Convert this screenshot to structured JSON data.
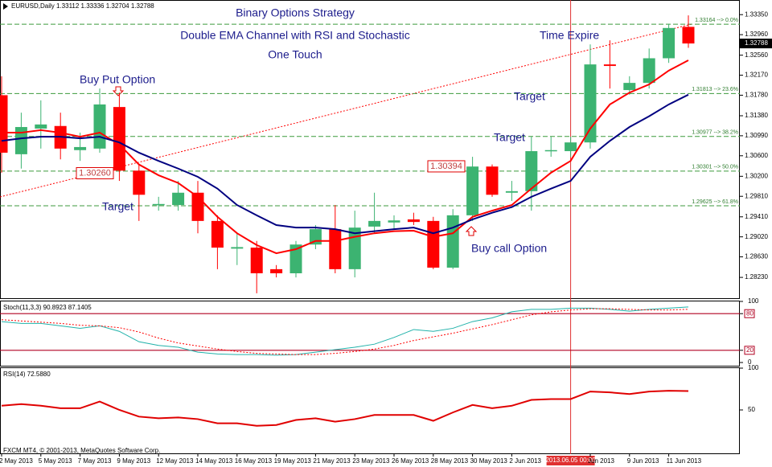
{
  "chart_data": [
    {
      "type": "candlestick",
      "header": "EURUSD,Daily 1.33112 1.33336 1.32704 1.32788",
      "title_lines": [
        "Binary Options Strategy",
        "Double EMA Channel with RSI and Stochastic",
        "One Touch"
      ],
      "annotations": [
        "Buy Put Option",
        "Target",
        "Target",
        "Target",
        "Buy call Option",
        "Time Expire"
      ],
      "categories": [
        "2 May 2013",
        null,
        "5 May 2013",
        null,
        "7 May 2013",
        null,
        "9 May 2013",
        null,
        "12 May 2013",
        null,
        "14 May 2013",
        null,
        "16 May 2013",
        null,
        "19 May 2013",
        null,
        "21 May 2013",
        null,
        "23 May 2013",
        null,
        "26 May 2013",
        null,
        "28 May 2013",
        null,
        "30 May 2013",
        null,
        "2 Jun 2013",
        null,
        null,
        null,
        "Jun 2013",
        null,
        "9 Jun 2013",
        null,
        "11 Jun 2013",
        null
      ],
      "crosshair_label": "2013.06.05 00:00",
      "open": [
        1.3178,
        1.3063,
        1.3113,
        1.3118,
        1.3071,
        1.3074,
        1.3155,
        1.3031,
        1.2964,
        1.2964,
        1.2988,
        1.2933,
        1.2879,
        1.2881,
        1.2839,
        1.2831,
        1.2887,
        1.2917,
        1.2839,
        1.2922,
        1.293,
        1.2936,
        1.2933,
        1.2842,
        1.2944,
        1.3039,
        1.2988,
        1.2991,
        1.3069,
        1.3069,
        1.3086,
        1.3238,
        1.3188,
        1.3202,
        1.325,
        1.33112
      ],
      "high": [
        1.3215,
        1.3144,
        1.3168,
        1.3144,
        1.3105,
        1.3191,
        1.3183,
        1.3043,
        1.298,
        1.3011,
        1.3011,
        1.2944,
        1.2909,
        1.2894,
        1.2847,
        1.2894,
        1.2925,
        1.2964,
        1.2953,
        1.2988,
        1.2944,
        1.2949,
        1.2941,
        1.2956,
        1.3058,
        1.3043,
        1.3011,
        1.3097,
        1.3097,
        1.3097,
        1.3277,
        1.3285,
        1.3215,
        1.3269,
        1.3317,
        1.33336
      ],
      "low": [
        1.3027,
        1.3035,
        1.3074,
        1.3053,
        1.305,
        1.3066,
        1.3011,
        1.2933,
        1.2953,
        1.2953,
        1.2909,
        1.2839,
        1.2847,
        1.2792,
        1.2823,
        1.2823,
        1.2878,
        1.2831,
        1.2823,
        1.2909,
        1.2917,
        1.2925,
        1.2839,
        1.2839,
        1.2933,
        1.298,
        1.2972,
        1.2953,
        1.3058,
        1.3058,
        1.3074,
        1.3191,
        1.3179,
        1.3191,
        1.3241,
        1.32704
      ],
      "close": [
        1.3066,
        1.3116,
        1.3121,
        1.3074,
        1.3077,
        1.316,
        1.3031,
        1.2984,
        1.2966,
        1.2988,
        1.2933,
        1.2881,
        1.2882,
        1.2831,
        1.2831,
        1.2887,
        1.2917,
        1.2839,
        1.292,
        1.2933,
        1.2934,
        1.2931,
        1.2842,
        1.2944,
        1.3039,
        1.2984,
        1.2991,
        1.3069,
        1.3071,
        1.3086,
        1.3238,
        1.3235,
        1.3202,
        1.325,
        1.3309,
        1.32788
      ],
      "up_color": "#3cb371",
      "down_color": "#ff0000",
      "lines": [
        {
          "color": "#ff0000",
          "values": [
            1.3105,
            1.3105,
            1.311,
            1.3105,
            1.3097,
            1.3105,
            1.3082,
            1.3043,
            1.3022,
            1.3007,
            1.298,
            1.2941,
            1.2909,
            1.2886,
            1.287,
            1.2878,
            1.2894,
            1.2894,
            1.2902,
            1.2909,
            1.2913,
            1.2914,
            1.2902,
            1.2909,
            1.2941,
            1.2953,
            1.2964,
            1.2996,
            1.3027,
            1.305,
            1.3113,
            1.316,
            1.3183,
            1.3199,
            1.3226,
            1.3246
          ]
        },
        {
          "color": "#000080",
          "values": [
            1.3089,
            1.3094,
            1.3097,
            1.3097,
            1.3094,
            1.3097,
            1.3086,
            1.3066,
            1.305,
            1.3035,
            1.3019,
            1.2996,
            1.2964,
            1.2944,
            1.2925,
            1.292,
            1.292,
            1.2917,
            1.2909,
            1.2913,
            1.2917,
            1.292,
            1.2909,
            1.292,
            1.2936,
            1.2949,
            1.296,
            1.298,
            1.2996,
            1.3011,
            1.3058,
            1.3089,
            1.3116,
            1.3137,
            1.316,
            1.3179
          ]
        }
      ],
      "ylim": [
        1.2784,
        1.3351
      ],
      "yticks": [
        {
          "value": 1.3335,
          "label": "1.33350"
        },
        {
          "value": 1.3296,
          "label": "1.32960"
        },
        {
          "value": 1.3256,
          "label": "1.32560"
        },
        {
          "value": 1.3217,
          "label": "1.32170"
        },
        {
          "value": 1.3178,
          "label": "1.31780"
        },
        {
          "value": 1.3138,
          "label": "1.31380"
        },
        {
          "value": 1.3099,
          "label": "1.30990"
        },
        {
          "value": 1.306,
          "label": "1.30600"
        },
        {
          "value": 1.302,
          "label": "1.30200"
        },
        {
          "value": 1.2981,
          "label": "1.29810"
        },
        {
          "value": 1.2941,
          "label": "1.29410"
        },
        {
          "value": 1.2902,
          "label": "1.29020"
        },
        {
          "value": 1.2863,
          "label": "1.28630"
        },
        {
          "value": 1.2823,
          "label": "1.28230"
        }
      ],
      "fib_levels": [
        {
          "value": 1.33164,
          "label": "1.33164 --> 0.0%"
        },
        {
          "value": 1.31813,
          "label": "1.31813 --> 23.6%"
        },
        {
          "value": 1.30977,
          "label": "1.30977 --> 38.2%"
        },
        {
          "value": 1.30301,
          "label": "1.30301 --> 50.0%"
        },
        {
          "value": 1.29625,
          "label": "1.29625 --> 61.8%"
        }
      ],
      "price_labels": [
        {
          "value": 1.3026,
          "label": "1.30260"
        },
        1.30394
      ],
      "last_price": 1.32788,
      "footer": "FXCM MT4, © 2001-2013, MetaQuotes Software Corp."
    },
    {
      "type": "line",
      "title": "Stoch(11,3,3) 90.8923 87.1405",
      "ylim": [
        0,
        100
      ],
      "yticks": [
        0,
        20,
        80,
        100
      ],
      "levels": [
        20,
        80
      ],
      "level_color": "#b00020",
      "series": [
        {
          "color": "#20b2aa",
          "values": [
            67,
            64,
            64,
            60,
            56,
            60,
            51,
            34,
            28,
            25,
            17,
            14,
            13,
            13,
            12,
            13,
            17,
            21,
            25,
            30,
            41,
            54,
            51,
            56,
            67,
            73,
            83,
            87,
            87,
            89,
            89,
            87,
            84,
            87,
            89,
            90.8923
          ]
        },
        {
          "color": "#ff0000",
          "values": [
            70,
            68,
            66,
            64,
            61,
            60,
            57,
            50,
            40,
            32,
            27,
            22,
            18,
            15,
            14,
            13,
            13,
            15,
            18,
            22,
            28,
            36,
            42,
            48,
            55,
            62,
            70,
            78,
            83,
            86,
            88,
            88,
            87,
            86,
            86,
            87.1405
          ]
        }
      ]
    },
    {
      "type": "line",
      "title": "RSI(14) 72.5880",
      "ylim": [
        0,
        100
      ],
      "yticks": [
        50,
        100
      ],
      "series": [
        {
          "color": "#e00000",
          "values": [
            55,
            57,
            55,
            52,
            52,
            60,
            50,
            42,
            40,
            41,
            39,
            34,
            34,
            31,
            32,
            38,
            40,
            36,
            39,
            44,
            44,
            44,
            37,
            47,
            56,
            52,
            55,
            62,
            63,
            63,
            72,
            71,
            69,
            72,
            73,
            72.588
          ]
        }
      ]
    }
  ]
}
